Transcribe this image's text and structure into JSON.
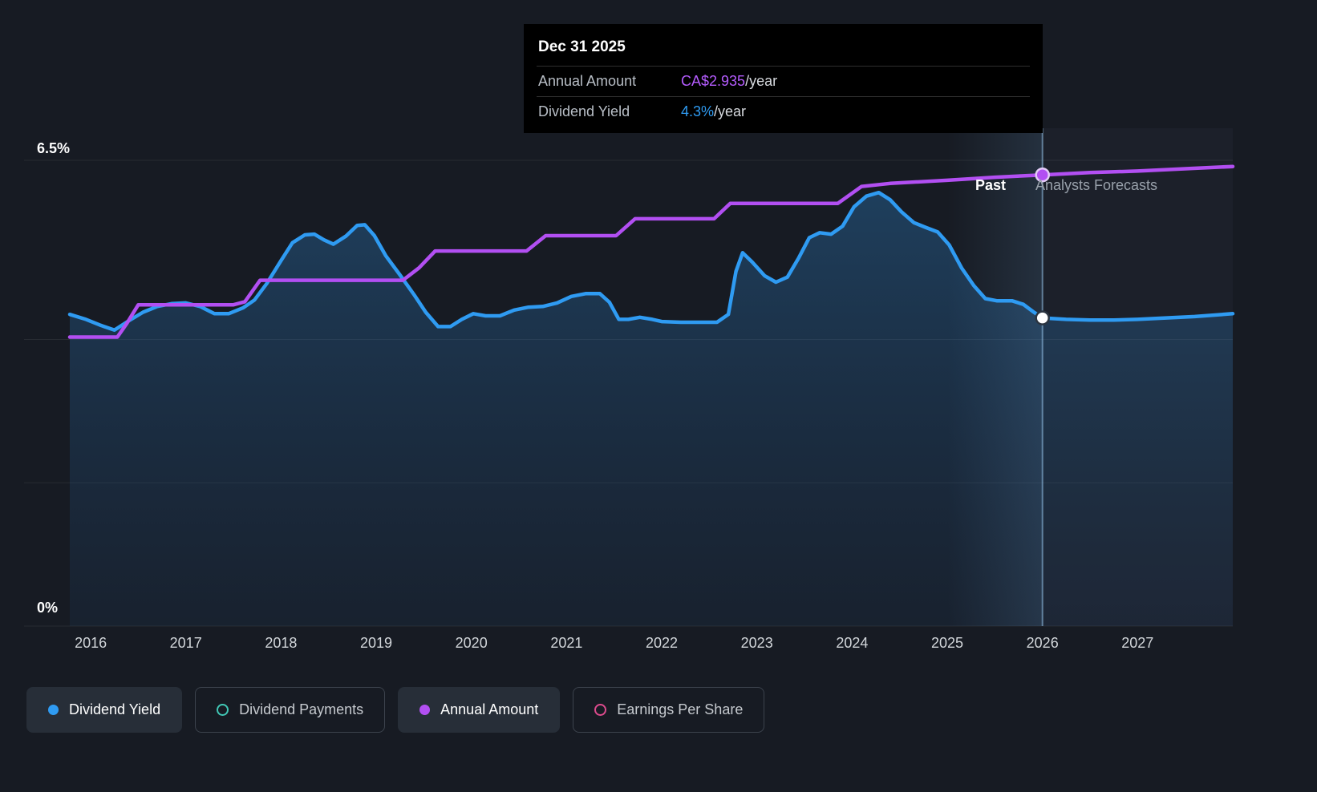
{
  "axis": {
    "y_top": "6.5%",
    "y_bottom": "0%",
    "x_labels": [
      "2016",
      "2017",
      "2018",
      "2019",
      "2020",
      "2021",
      "2022",
      "2023",
      "2024",
      "2025",
      "2026",
      "2027"
    ]
  },
  "annotations": {
    "past": "Past",
    "forecast": "Analysts Forecasts"
  },
  "tooltip": {
    "date": "Dec 31 2025",
    "rows": [
      {
        "label": "Annual Amount",
        "value": "CA$2.935",
        "suffix": "/year",
        "color": "#b55cff"
      },
      {
        "label": "Dividend Yield",
        "value": "4.3%",
        "suffix": "/year",
        "color": "#2f9bf2"
      }
    ]
  },
  "legend": [
    {
      "label": "Dividend Yield",
      "color": "#2f9bf2",
      "style": "filled",
      "active": true
    },
    {
      "label": "Dividend Payments",
      "color": "#41c8b6",
      "style": "outline",
      "active": false
    },
    {
      "label": "Annual Amount",
      "color": "#b24ff2",
      "style": "filled",
      "active": true
    },
    {
      "label": "Earnings Per Share",
      "color": "#dd4b8d",
      "style": "outline",
      "active": false
    }
  ],
  "chart_data": {
    "type": "line",
    "x_range": [
      2015.3,
      2028.0
    ],
    "divider_x": 2026.0,
    "gridlines_percent": [
      0,
      2,
      4,
      6.5
    ],
    "colors": {
      "background": "#171b23",
      "gridline": "rgba(255,255,255,0.07)",
      "divider": "rgba(151,196,235,0.55)",
      "area_top": "rgba(45,130,200,0.35)",
      "area_bottom": "rgba(35,90,150,0.10)"
    },
    "series": [
      {
        "name": "Dividend Yield",
        "unit": "%",
        "color": "#2f9bf2",
        "area": true,
        "ylim": [
          0,
          6.5
        ],
        "marker": {
          "fill": "#ffffff",
          "stroke": "#2b3440"
        },
        "points": [
          [
            2015.78,
            4.35
          ],
          [
            2015.95,
            4.28
          ],
          [
            2016.1,
            4.2
          ],
          [
            2016.25,
            4.13
          ],
          [
            2016.4,
            4.26
          ],
          [
            2016.55,
            4.38
          ],
          [
            2016.7,
            4.46
          ],
          [
            2016.85,
            4.5
          ],
          [
            2017.0,
            4.51
          ],
          [
            2017.15,
            4.46
          ],
          [
            2017.3,
            4.36
          ],
          [
            2017.45,
            4.36
          ],
          [
            2017.6,
            4.44
          ],
          [
            2017.72,
            4.55
          ],
          [
            2017.85,
            4.78
          ],
          [
            2018.0,
            5.1
          ],
          [
            2018.12,
            5.35
          ],
          [
            2018.25,
            5.46
          ],
          [
            2018.35,
            5.47
          ],
          [
            2018.45,
            5.39
          ],
          [
            2018.55,
            5.33
          ],
          [
            2018.68,
            5.44
          ],
          [
            2018.8,
            5.59
          ],
          [
            2018.88,
            5.6
          ],
          [
            2018.98,
            5.45
          ],
          [
            2019.1,
            5.17
          ],
          [
            2019.25,
            4.9
          ],
          [
            2019.4,
            4.62
          ],
          [
            2019.52,
            4.38
          ],
          [
            2019.65,
            4.18
          ],
          [
            2019.78,
            4.18
          ],
          [
            2019.9,
            4.28
          ],
          [
            2020.02,
            4.36
          ],
          [
            2020.15,
            4.33
          ],
          [
            2020.3,
            4.33
          ],
          [
            2020.45,
            4.41
          ],
          [
            2020.6,
            4.45
          ],
          [
            2020.75,
            4.46
          ],
          [
            2020.9,
            4.51
          ],
          [
            2021.05,
            4.6
          ],
          [
            2021.2,
            4.64
          ],
          [
            2021.35,
            4.64
          ],
          [
            2021.45,
            4.52
          ],
          [
            2021.55,
            4.28
          ],
          [
            2021.65,
            4.28
          ],
          [
            2021.77,
            4.31
          ],
          [
            2021.9,
            4.28
          ],
          [
            2022.0,
            4.25
          ],
          [
            2022.2,
            4.24
          ],
          [
            2022.4,
            4.24
          ],
          [
            2022.58,
            4.24
          ],
          [
            2022.7,
            4.35
          ],
          [
            2022.78,
            4.95
          ],
          [
            2022.85,
            5.21
          ],
          [
            2022.95,
            5.08
          ],
          [
            2023.08,
            4.89
          ],
          [
            2023.2,
            4.8
          ],
          [
            2023.32,
            4.87
          ],
          [
            2023.44,
            5.14
          ],
          [
            2023.55,
            5.42
          ],
          [
            2023.66,
            5.49
          ],
          [
            2023.78,
            5.47
          ],
          [
            2023.9,
            5.58
          ],
          [
            2024.02,
            5.85
          ],
          [
            2024.15,
            6.0
          ],
          [
            2024.28,
            6.05
          ],
          [
            2024.4,
            5.95
          ],
          [
            2024.52,
            5.78
          ],
          [
            2024.65,
            5.63
          ],
          [
            2024.78,
            5.56
          ],
          [
            2024.9,
            5.5
          ],
          [
            2025.02,
            5.32
          ],
          [
            2025.15,
            5.0
          ],
          [
            2025.28,
            4.75
          ],
          [
            2025.4,
            4.57
          ],
          [
            2025.52,
            4.54
          ],
          [
            2025.68,
            4.54
          ],
          [
            2025.8,
            4.49
          ],
          [
            2025.9,
            4.39
          ],
          [
            2026.0,
            4.3
          ],
          [
            2026.25,
            4.28
          ],
          [
            2026.5,
            4.27
          ],
          [
            2026.75,
            4.27
          ],
          [
            2027.0,
            4.28
          ],
          [
            2027.3,
            4.3
          ],
          [
            2027.6,
            4.32
          ],
          [
            2028.0,
            4.36
          ]
        ]
      },
      {
        "name": "Annual Amount",
        "unit": "CA$/year",
        "color": "#b24ff2",
        "area": false,
        "ylim": [
          0,
          3.03
        ],
        "marker": {
          "fill": "#b24ff2",
          "stroke": "#e4ccf8"
        },
        "points": [
          [
            2015.78,
            1.88
          ],
          [
            2016.28,
            1.88
          ],
          [
            2016.38,
            1.97
          ],
          [
            2016.5,
            2.09
          ],
          [
            2017.5,
            2.09
          ],
          [
            2017.62,
            2.11
          ],
          [
            2017.78,
            2.25
          ],
          [
            2019.28,
            2.25
          ],
          [
            2019.45,
            2.33
          ],
          [
            2019.62,
            2.44
          ],
          [
            2020.58,
            2.44
          ],
          [
            2020.78,
            2.54
          ],
          [
            2021.52,
            2.54
          ],
          [
            2021.72,
            2.65
          ],
          [
            2022.55,
            2.65
          ],
          [
            2022.72,
            2.75
          ],
          [
            2023.85,
            2.75
          ],
          [
            2024.1,
            2.86
          ],
          [
            2024.4,
            2.88
          ],
          [
            2025.0,
            2.9
          ],
          [
            2025.5,
            2.92
          ],
          [
            2026.0,
            2.935
          ],
          [
            2026.5,
            2.95
          ],
          [
            2027.0,
            2.96
          ],
          [
            2027.5,
            2.975
          ],
          [
            2028.0,
            2.99
          ]
        ]
      }
    ],
    "markers": [
      {
        "series": "Annual Amount",
        "x": 2026.0,
        "value": 2.935
      },
      {
        "series": "Dividend Yield",
        "x": 2026.0,
        "value": 4.3
      }
    ]
  }
}
